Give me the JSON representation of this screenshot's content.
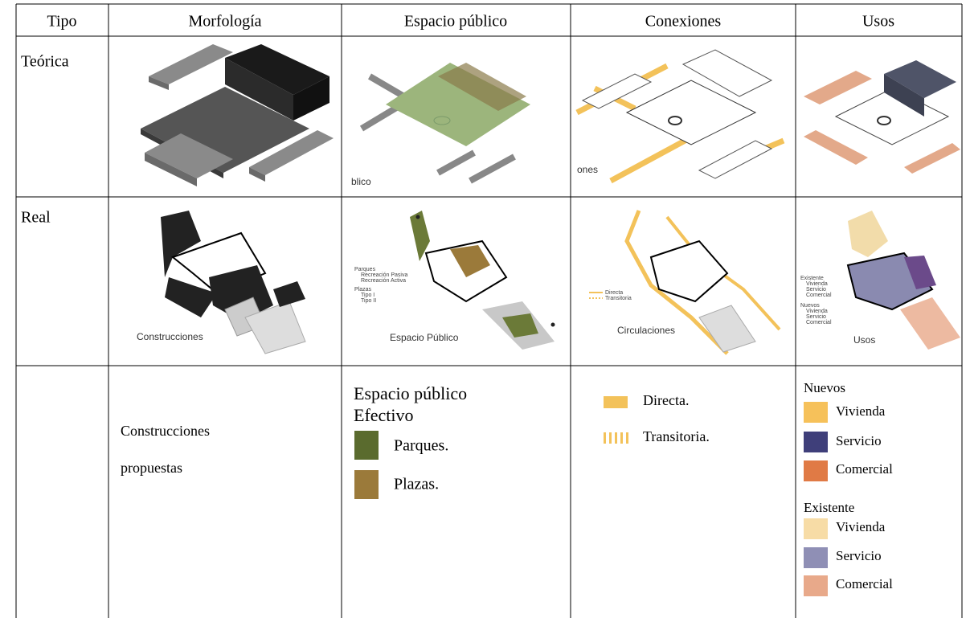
{
  "table": {
    "header": [
      "Tipo",
      "Morfología",
      "Espacio público",
      "Conexiones",
      "Usos"
    ],
    "teorica": {
      "label": "Teórica",
      "espacio_caption": "blico",
      "conexiones_caption": "ones"
    },
    "real": {
      "label": "Real",
      "morfologia_caption": "Construcciones",
      "espacio_caption": "Espacio Público",
      "espacio_legend": [
        "Parques",
        "Recreación Pasiva",
        "Recreación Activa",
        "Plazas",
        "Tipo I",
        "Tipo II"
      ],
      "conexiones_caption": "Circulaciones",
      "conexiones_legend": [
        "Directa",
        "Transitoria"
      ],
      "usos_caption": "Usos",
      "usos_legend": [
        "Existente",
        "Vivienda",
        "Servicio",
        "Comercial",
        "Nuevos",
        "Vivienda",
        "Servicio",
        "Comercial"
      ]
    },
    "propuesta": {
      "morfologia": [
        "Construcciones",
        "propuestas"
      ],
      "espacio_title": [
        "Espacio público",
        "Efectivo"
      ],
      "espacio_legend": [
        "Parques.",
        "Plazas."
      ],
      "conexiones_legend": [
        "Directa.",
        "Transitoria."
      ],
      "usos_nuevos": "Nuevos",
      "usos_nuevos_items": [
        "Vivienda",
        "Servicio",
        "Comercial"
      ],
      "usos_existente": "Existente",
      "usos_existente_items": [
        "Vivienda",
        "Servicio",
        "Comercial"
      ]
    }
  }
}
